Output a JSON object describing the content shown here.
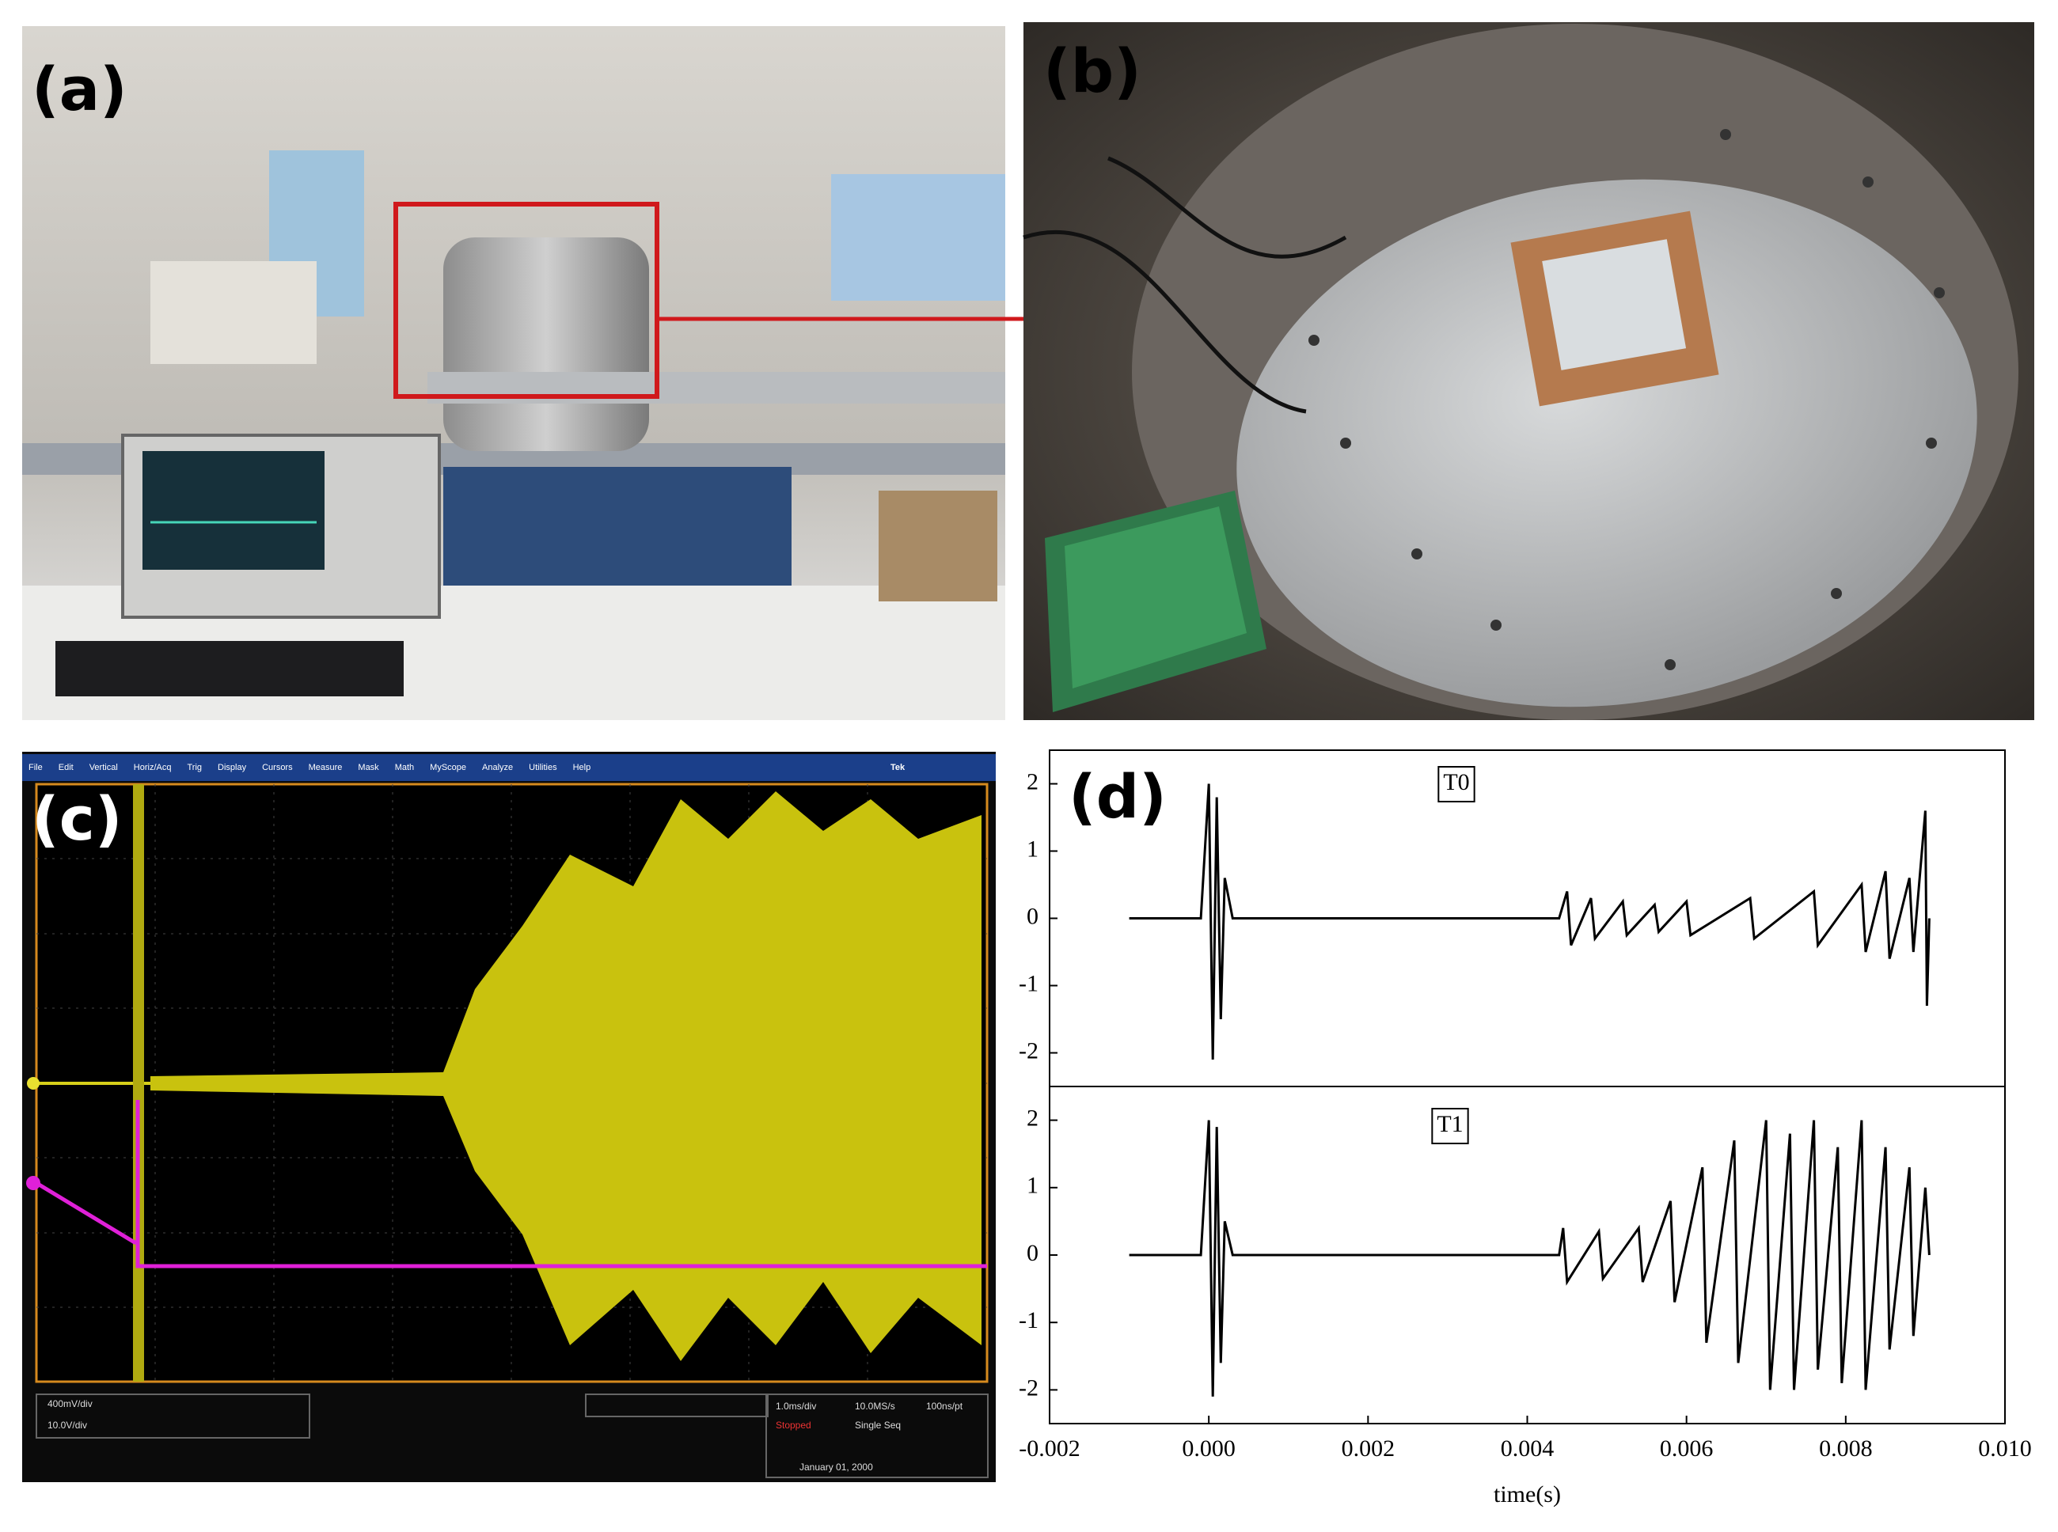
{
  "panels": {
    "a": "(a)",
    "b": "(b)",
    "c": "(c)",
    "d": "(d)"
  },
  "oscilloscope": {
    "menu": [
      "File",
      "Edit",
      "Vertical",
      "Horiz/Acq",
      "Trig",
      "Display",
      "Cursors",
      "Measure",
      "Mask",
      "Math",
      "MyScope",
      "Analyze",
      "Utilities",
      "Help"
    ],
    "brand": "Tek",
    "readouts": [
      "400mV/div",
      "10.0V/div",
      "1.0ms/div",
      "10.0MS/s",
      "100ns/pt",
      "Stopped",
      "Single Seq",
      "January 01, 2000"
    ]
  },
  "chart_data": [
    {
      "type": "line",
      "xlim": [
        -0.002,
        0.01
      ],
      "ylim": [
        -2.5,
        2.5
      ],
      "yticks": [
        -2,
        -1,
        0,
        1,
        2
      ],
      "series": [
        {
          "name": "T0",
          "color": "#000000",
          "x": [
            -0.001,
            -0.0001,
            0,
            5e-05,
            0.0001,
            0.00015,
            0.0002,
            0.0003,
            0.0044,
            0.0045,
            0.00455,
            0.0048,
            0.00485,
            0.0052,
            0.00525,
            0.0056,
            0.00565,
            0.006,
            0.00605,
            0.0068,
            0.00685,
            0.0076,
            0.00765,
            0.0082,
            0.00825,
            0.0085,
            0.00855,
            0.0088,
            0.00885,
            0.009,
            0.00902,
            0.00905
          ],
          "values": [
            0,
            0,
            2.0,
            -2.1,
            1.8,
            -1.5,
            0.6,
            0,
            0,
            0.4,
            -0.4,
            0.3,
            -0.3,
            0.25,
            -0.25,
            0.2,
            -0.2,
            0.25,
            -0.25,
            0.3,
            -0.3,
            0.4,
            -0.4,
            0.5,
            -0.5,
            0.7,
            -0.6,
            0.6,
            -0.5,
            1.6,
            -1.3,
            0
          ]
        }
      ]
    },
    {
      "type": "line",
      "xlim": [
        -0.002,
        0.01
      ],
      "ylim": [
        -2.5,
        2.5
      ],
      "yticks": [
        -2,
        -1,
        0,
        1,
        2
      ],
      "xticks": [
        -0.002,
        {
          "value": 0,
          "label": "0.000"
        },
        0.002,
        0.004,
        0.006,
        0.008,
        {
          "value": 0.01,
          "label": "0.010"
        }
      ],
      "xlabel": "time(s)",
      "series": [
        {
          "name": "T1",
          "color": "#000000",
          "x": [
            -0.001,
            -0.0001,
            0,
            5e-05,
            0.0001,
            0.00015,
            0.0002,
            0.0003,
            0.0044,
            0.00445,
            0.0045,
            0.0049,
            0.00495,
            0.0054,
            0.00545,
            0.0058,
            0.00585,
            0.0062,
            0.00625,
            0.0066,
            0.00665,
            0.007,
            0.00705,
            0.0073,
            0.00735,
            0.0076,
            0.00765,
            0.0079,
            0.00795,
            0.0082,
            0.00825,
            0.0085,
            0.00855,
            0.0088,
            0.00885,
            0.009,
            0.00905
          ],
          "values": [
            0,
            0,
            2.0,
            -2.1,
            1.9,
            -1.6,
            0.5,
            0,
            0,
            0.4,
            -0.4,
            0.35,
            -0.35,
            0.4,
            -0.4,
            0.8,
            -0.7,
            1.3,
            -1.3,
            1.7,
            -1.6,
            2.0,
            -2.0,
            1.8,
            -2.0,
            2.0,
            -1.7,
            1.6,
            -1.9,
            2.0,
            -2.0,
            1.6,
            -1.4,
            1.3,
            -1.2,
            1.0,
            0
          ]
        }
      ]
    }
  ]
}
